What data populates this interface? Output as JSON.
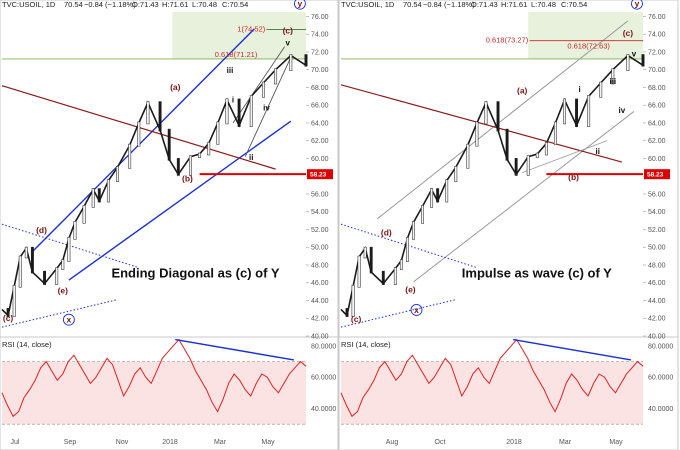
{
  "chart_data": [
    {
      "type": "line",
      "header": "TVC:USOIL, 1D",
      "quote": {
        "last": "70.54",
        "change": "−0.84 (−1.18%)",
        "open": "O:71.43",
        "high": "H:71.61",
        "low": "L:70.48",
        "close": "C:70.54"
      },
      "x_ticks": [
        "Jul",
        "Sep",
        "Nov",
        "2018",
        "Mar",
        "May"
      ],
      "y_ticks": [
        "76.00",
        "74.00",
        "72.00",
        "70.00",
        "68.00",
        "66.00",
        "64.00",
        "62.00",
        "60.00",
        "58.00",
        "56.00",
        "54.00",
        "52.00",
        "50.00",
        "48.00",
        "46.00",
        "44.00",
        "42.00",
        "40.00"
      ],
      "ylim": [
        40,
        76.5
      ],
      "price_tag": "58.23",
      "fib_labels": [
        "0.618(71.21)",
        "1(74.52)"
      ],
      "wave_labels": [
        "(a)",
        "(b)",
        "(c)",
        "(d)",
        "(e)",
        "(c)",
        "x",
        "y",
        "i",
        "ii",
        "iii",
        "iv",
        "v"
      ],
      "annotation": "Ending Diagonal as (c) of Y",
      "series": [
        {
          "name": "USOIL",
          "x": [
            0,
            2,
            4,
            6,
            8,
            10,
            14,
            18,
            20,
            22,
            24,
            27,
            30,
            32,
            35,
            38,
            42,
            45,
            48,
            52,
            55,
            58,
            62,
            65,
            68,
            71,
            74,
            78,
            82,
            86,
            90,
            95,
            100
          ],
          "values": [
            43.0,
            42.3,
            45.6,
            48.9,
            49.9,
            47.2,
            45.9,
            47.6,
            48.5,
            51.0,
            52.8,
            54.6,
            56.5,
            55.2,
            57.5,
            59.0,
            61.5,
            64.0,
            66.3,
            63.2,
            59.9,
            58.2,
            60.2,
            60.5,
            61.7,
            64.0,
            66.6,
            63.7,
            67.0,
            68.5,
            70.0,
            71.6,
            70.5
          ]
        }
      ],
      "rsi": {
        "title": "RSI (14, close)",
        "ticks": [
          "80.0000",
          "60.0000",
          "40.0000"
        ],
        "ylim": [
          25,
          85
        ],
        "values": [
          50,
          42,
          35,
          38,
          47,
          52,
          58,
          66,
          70,
          64,
          58,
          62,
          70,
          74,
          68,
          62,
          56,
          60,
          66,
          72,
          68,
          58,
          48,
          54,
          62,
          66,
          60,
          56,
          64,
          72,
          76,
          80,
          84,
          78,
          72,
          64,
          58,
          52,
          44,
          38,
          46,
          56,
          62,
          58,
          52,
          48,
          56,
          62,
          60,
          54,
          50,
          56,
          62,
          66,
          70,
          67
        ]
      }
    },
    {
      "type": "line",
      "header": "TVC:USOIL, 1D",
      "quote": {
        "last": "70.54",
        "change": "−0.84 (−1.18%)",
        "open": "O:71.43",
        "high": "H:71.61",
        "low": "L:70.48",
        "close": "C:70.54"
      },
      "x_ticks": [
        "Aug",
        "Oct",
        "2018",
        "Mar",
        "May"
      ],
      "y_ticks": [
        "76.00",
        "74.00",
        "72.00",
        "70.00",
        "68.00",
        "66.00",
        "64.00",
        "62.00",
        "60.00",
        "58.00",
        "56.00",
        "54.00",
        "52.00",
        "50.00",
        "48.00",
        "46.00",
        "44.00",
        "42.00",
        "40.00"
      ],
      "ylim": [
        40,
        76.5
      ],
      "price_tag": "58.23",
      "fib_labels": [
        "0.618(73.27)",
        "0.618(72.63)"
      ],
      "wave_labels": [
        "(a)",
        "(b)",
        "(c)",
        "(d)",
        "(e)",
        "(c)",
        "x",
        "y",
        "i",
        "ii",
        "iii",
        "iv",
        "v"
      ],
      "annotation": "Impulse as wave (c) of Y",
      "series": [
        {
          "name": "USOIL",
          "x": [
            0,
            2,
            4,
            6,
            8,
            10,
            14,
            18,
            20,
            22,
            24,
            27,
            30,
            32,
            35,
            38,
            42,
            45,
            48,
            52,
            55,
            58,
            62,
            65,
            68,
            71,
            74,
            78,
            82,
            86,
            90,
            95,
            100
          ],
          "values": [
            43.0,
            42.3,
            45.6,
            48.9,
            49.9,
            47.2,
            45.9,
            47.6,
            48.5,
            51.0,
            52.8,
            54.6,
            56.5,
            55.2,
            57.5,
            59.0,
            61.5,
            64.0,
            66.3,
            63.2,
            59.9,
            58.2,
            60.2,
            60.5,
            61.7,
            64.0,
            66.6,
            63.7,
            67.0,
            68.5,
            70.0,
            71.6,
            70.5
          ]
        }
      ],
      "rsi": {
        "title": "RSI (14, close)",
        "ticks": [
          "80.0000",
          "60.0000",
          "40.0000"
        ],
        "ylim": [
          25,
          85
        ],
        "values": [
          50,
          42,
          35,
          38,
          47,
          52,
          58,
          66,
          70,
          64,
          58,
          62,
          70,
          74,
          68,
          62,
          56,
          60,
          66,
          72,
          68,
          58,
          48,
          54,
          62,
          66,
          60,
          56,
          64,
          72,
          76,
          80,
          84,
          78,
          72,
          64,
          58,
          52,
          44,
          38,
          46,
          56,
          62,
          58,
          52,
          48,
          56,
          62,
          60,
          54,
          50,
          56,
          62,
          66,
          70,
          67
        ]
      }
    }
  ]
}
